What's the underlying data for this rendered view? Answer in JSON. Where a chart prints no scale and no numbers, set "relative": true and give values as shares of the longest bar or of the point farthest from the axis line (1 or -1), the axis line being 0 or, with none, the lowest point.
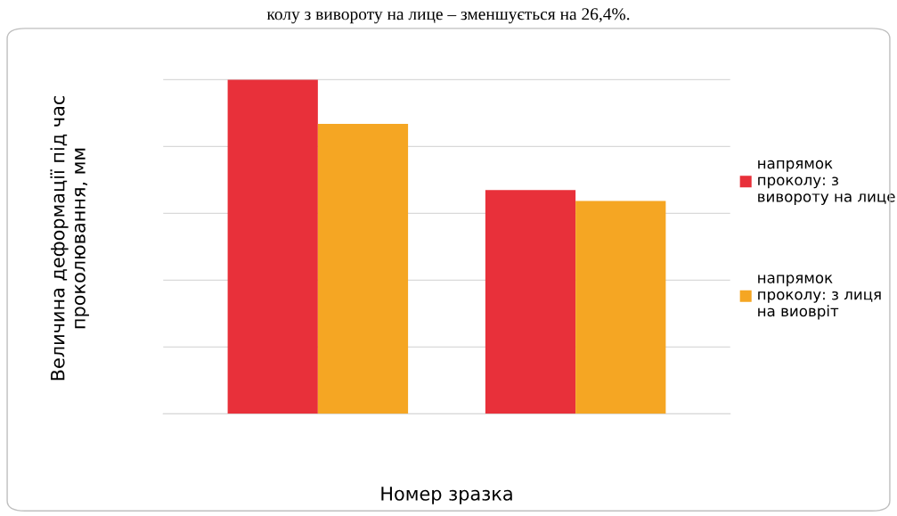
{
  "chart_data": {
    "type": "bar",
    "relative": true,
    "categories": [
      null,
      null
    ],
    "series": [
      {
        "name": "напрямок\nпроколу: з\nвивороту на лице",
        "color": "#e8303a",
        "values": [
          1,
          0.67
        ]
      },
      {
        "name": "напрямок\nпроколу: з лиця\nна виовріт",
        "color": "#f5a623",
        "values": [
          0.868,
          0.637
        ]
      }
    ],
    "xlabel": "Номер зразка",
    "ylabel": "Величина деформації під час\nпроколювання, мм",
    "annotations": [
      "колу з вивороту на лице – зменшується на 26,4%."
    ],
    "grid": "y",
    "legend": "right"
  }
}
